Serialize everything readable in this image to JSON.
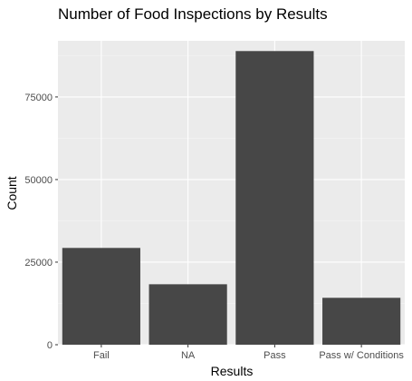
{
  "chart_data": {
    "type": "bar",
    "title": "Number of Food Inspections by Results",
    "xlabel": "Results",
    "ylabel": "Count",
    "categories": [
      "Fail",
      "NA",
      "Pass",
      "Pass w/ Conditions"
    ],
    "values": [
      29300,
      18300,
      88900,
      14200
    ],
    "ylim": [
      0,
      92000
    ],
    "yticks": [
      0,
      25000,
      50000,
      75000
    ],
    "ytick_labels": [
      "0",
      "25000",
      "50000",
      "75000"
    ],
    "grid": true,
    "colors": {
      "bar": "#474747",
      "panel": "#ebebeb",
      "grid_major": "#ffffff",
      "grid_minor": "#f5f5f5",
      "tick": "#333333"
    }
  }
}
